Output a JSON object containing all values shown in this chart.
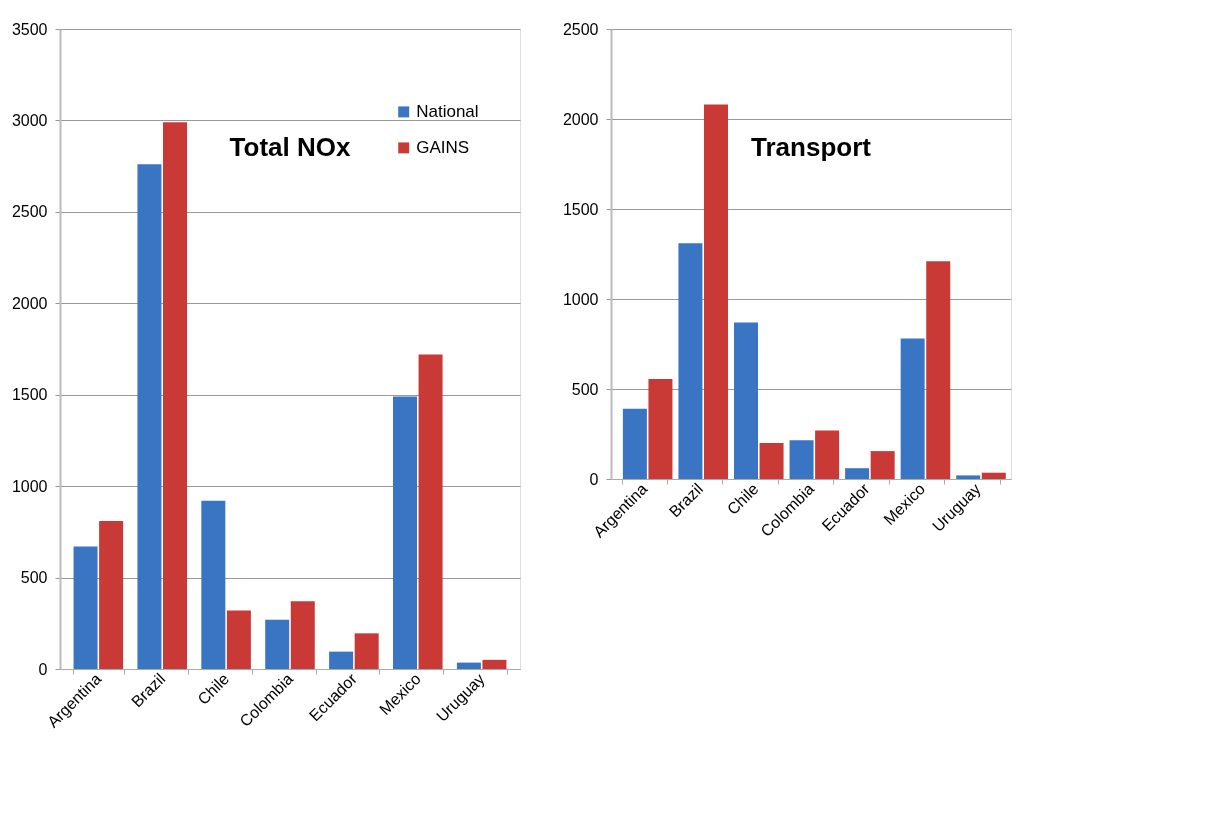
{
  "chart_data": [
    {
      "type": "bar",
      "title": "Total NOx",
      "categories": [
        "Argentina",
        "Brazil",
        "Chile",
        "Colombia",
        "Ecuador",
        "Mexico",
        "Uruguay"
      ],
      "series": [
        {
          "name": "National",
          "color": "#3a75c4",
          "values": [
            670,
            2760,
            920,
            270,
            95,
            1490,
            35
          ]
        },
        {
          "name": "GAINS",
          "color": "#c93a36",
          "values": [
            810,
            2990,
            320,
            370,
            195,
            1720,
            50
          ]
        }
      ],
      "ylim": [
        0,
        3500
      ],
      "yticks": [
        0,
        500,
        1000,
        1500,
        2000,
        2500,
        3000,
        3500
      ],
      "grid": "y",
      "legend": "top right"
    },
    {
      "type": "bar",
      "title": "Transport",
      "categories": [
        "Argentina",
        "Brazil",
        "Chile",
        "Colombia",
        "Ecuador",
        "Mexico",
        "Uruguay"
      ],
      "series": [
        {
          "color": "#3a75c4",
          "values": [
            390,
            1310,
            870,
            215,
            60,
            780,
            20
          ]
        },
        {
          "color": "#c93a36",
          "values": [
            555,
            2080,
            200,
            270,
            155,
            1210,
            35
          ]
        }
      ],
      "ylim": [
        0,
        2500
      ],
      "yticks": [
        0,
        500,
        1000,
        1500,
        2000,
        2500
      ],
      "grid": "y"
    }
  ]
}
